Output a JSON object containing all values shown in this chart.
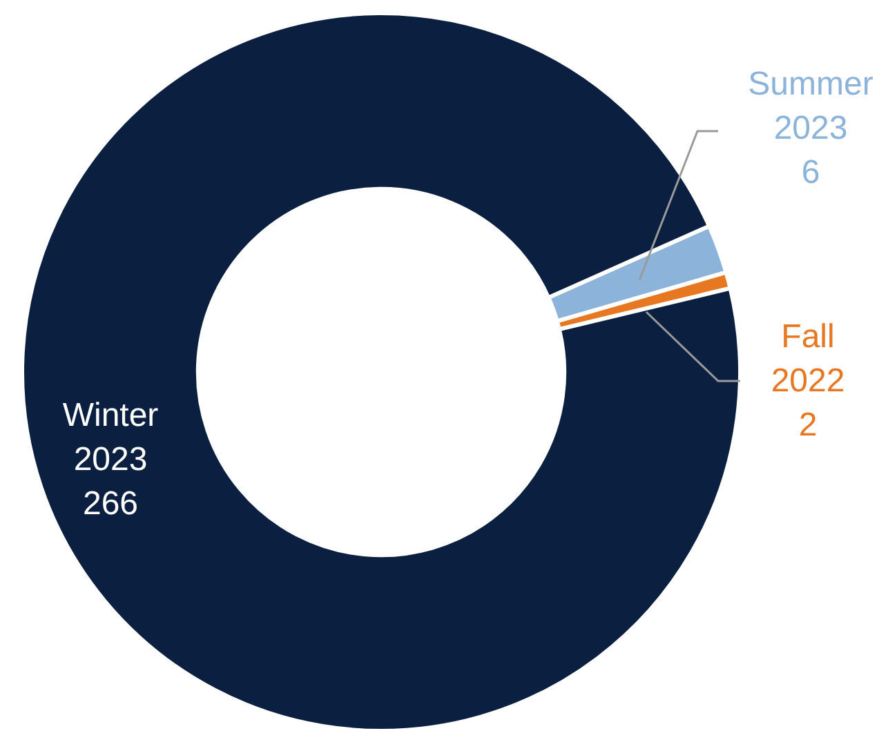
{
  "chart_data": {
    "type": "donut",
    "categories": [
      "Summer 2023",
      "Fall 2022",
      "Winter 2023"
    ],
    "values": [
      6,
      2,
      266
    ],
    "colors": [
      "#8cb3d9",
      "#e87722",
      "#0b1f40"
    ],
    "data_labels": true,
    "legend": false
  }
}
